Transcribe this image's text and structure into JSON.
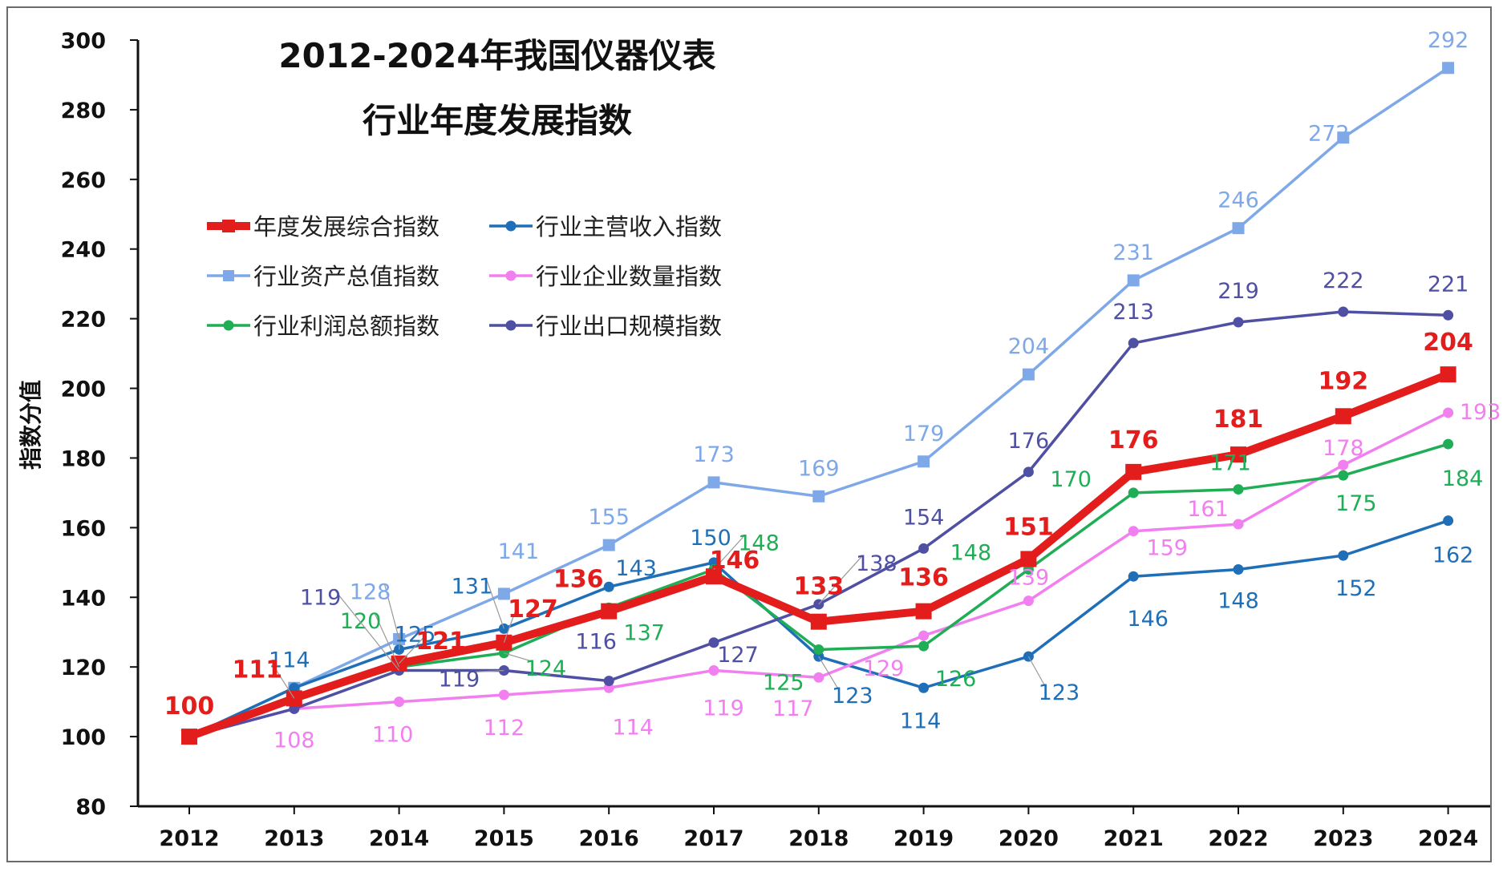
{
  "chart_data": {
    "type": "line",
    "title_lines": [
      "2012-2024年我国仪器仪表",
      "行业年度发展指数"
    ],
    "xlabel": "",
    "ylabel": "指数分值",
    "ylim": [
      80,
      300
    ],
    "yticks": [
      80,
      100,
      120,
      140,
      160,
      180,
      200,
      220,
      240,
      260,
      280,
      300
    ],
    "x": [
      "2012",
      "2013",
      "2014",
      "2015",
      "2016",
      "2017",
      "2018",
      "2019",
      "2020",
      "2021",
      "2022",
      "2023",
      "2024"
    ],
    "grid": false,
    "legend_position": "top-left",
    "series": [
      {
        "name": "行业资产总值指数",
        "color": "#7fa8e8",
        "marker": "square",
        "values": [
          100,
          114,
          128,
          141,
          155,
          173,
          169,
          179,
          204,
          231,
          246,
          272,
          292
        ],
        "labels": [
          "",
          "",
          "128",
          "141",
          "155",
          "173",
          "169",
          "179",
          "204",
          "231",
          "246",
          "272",
          "292"
        ]
      },
      {
        "name": "行业主营收入指数",
        "color": "#1f6fb8",
        "marker": "circle",
        "values": [
          100,
          114,
          125,
          131,
          143,
          150,
          123,
          114,
          123,
          146,
          148,
          152,
          162
        ],
        "labels": [
          "",
          "114",
          "125",
          "131",
          "143",
          "150",
          "123",
          "114",
          "123",
          "146",
          "148",
          "152",
          "162"
        ]
      },
      {
        "name": "行业企业数量指数",
        "color": "#f27ff0",
        "marker": "circle",
        "values": [
          100,
          108,
          110,
          112,
          114,
          119,
          117,
          129,
          139,
          159,
          161,
          178,
          193
        ],
        "labels": [
          "",
          "108",
          "110",
          "112",
          "114",
          "119",
          "117",
          "129",
          "139",
          "159",
          "161",
          "178",
          "193"
        ]
      },
      {
        "name": "行业利润总额指数",
        "color": "#1fae55",
        "marker": "circle",
        "values": [
          100,
          111,
          120,
          124,
          137,
          148,
          125,
          126,
          148,
          170,
          171,
          175,
          184
        ],
        "labels": [
          "",
          "",
          "120",
          "124",
          "137",
          "148",
          "125",
          "126",
          "148",
          "170",
          "171",
          "175",
          "184"
        ]
      },
      {
        "name": "行业出口规模指数",
        "color": "#4f4fa3",
        "marker": "circle",
        "values": [
          100,
          108,
          119,
          119,
          116,
          127,
          138,
          154,
          176,
          213,
          219,
          222,
          221
        ],
        "labels": [
          "",
          "",
          "119",
          "119",
          "116",
          "127",
          "138",
          "154",
          "176",
          "213",
          "219",
          "222",
          "221"
        ]
      },
      {
        "name": "年度发展综合指数",
        "color": "#e31c1c",
        "marker": "square",
        "values": [
          100,
          111,
          121,
          127,
          136,
          146,
          133,
          136,
          151,
          176,
          181,
          192,
          204
        ],
        "labels": [
          "100",
          "111",
          "121",
          "127",
          "136",
          "146",
          "133",
          "136",
          "151",
          "176",
          "181",
          "192",
          "204"
        ]
      }
    ]
  }
}
